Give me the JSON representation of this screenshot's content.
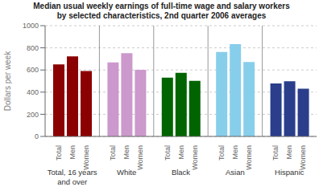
{
  "chart_data": {
    "type": "bar",
    "title": "Median usual weekly earnings of full-time wage and salary workers\nby selected characteristics, 2nd quarter 2006 averages",
    "ylabel": "Dollars per week",
    "categories": [
      "Total, 16 years\nand over",
      "White",
      "Black",
      "Asian",
      "Hispanic"
    ],
    "series": [
      {
        "name": "Total",
        "colors": [
          "#8B0000",
          "#CC99CC",
          "#006400",
          "#87CEEB",
          "#2B3E8B"
        ],
        "values": [
          651,
          669,
          531,
          762,
          479
        ]
      },
      {
        "name": "Men",
        "colors": [
          "#8B0000",
          "#CC99CC",
          "#006400",
          "#87CEEB",
          "#2B3E8B"
        ],
        "values": [
          723,
          752,
          574,
          833,
          499
        ]
      },
      {
        "name": "Women",
        "colors": [
          "#8B0000",
          "#CC99CC",
          "#006400",
          "#87CEEB",
          "#2B3E8B"
        ],
        "values": [
          591,
          601,
          501,
          672,
          431
        ]
      }
    ],
    "ylim": [
      0,
      1000
    ],
    "yticks": [
      0,
      200,
      400,
      600,
      800,
      1000
    ],
    "grid": true
  }
}
